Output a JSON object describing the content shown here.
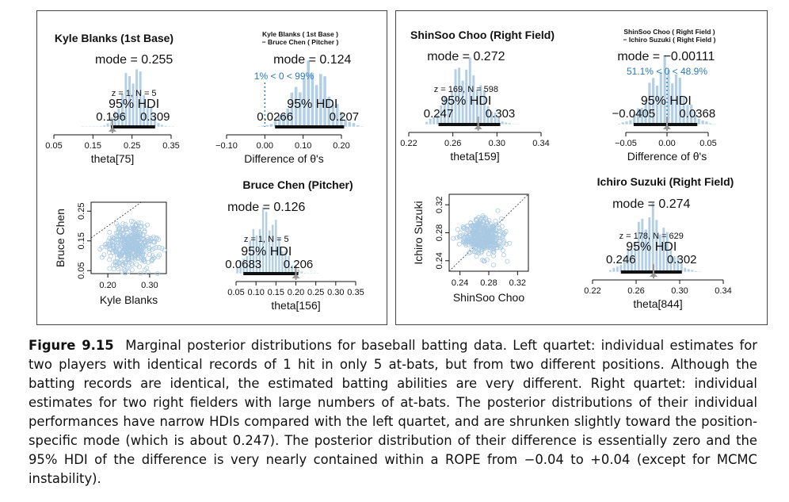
{
  "figure": {
    "label": "Figure 9.15",
    "caption": "Marginal posterior distributions for baseball batting data. Left quartet: individual estimates for two players with identical records of 1 hit in only 5 at-bats, but from two different positions. Although the batting records are identical, the estimated batting abilities are very different. Right quartet: individual estimates for two right fielders with large numbers of at-bats. The posterior distributions of their individual performances have narrow HDIs compared with the left quartet, and are shrunken slightly toward the position-specific mode (which is about 0.247). The posterior distribution of their difference is essentially zero and the 95% HDI of the difference is very nearly contained within a ROPE from −0.04 to +0.04 (except for MCMC instability)."
  },
  "colors": {
    "bar": "#b3cfe6",
    "scatter": "#a9c9e2",
    "hdi": "#111111",
    "compare": "#2a78b8",
    "marker": "#999999"
  },
  "chart_data": [
    {
      "id": "kb",
      "type": "histogram",
      "title": "Kyle Blanks (1st Base)",
      "xlabel": "theta[75]",
      "ticks": [
        "0.05",
        "0.15",
        "0.25",
        "0.35"
      ],
      "tick_values": [
        0.05,
        0.15,
        0.25,
        0.35
      ],
      "xlim": [
        0.05,
        0.35
      ],
      "mode_label": "mode = 0.255",
      "mode": 0.255,
      "zn": "z = 1, N = 5",
      "hdi_label": "95% HDI",
      "hdi": [
        0.196,
        0.309
      ],
      "hdi_lo_label": "0.196",
      "hdi_hi_label": "0.309",
      "marker": 0.2,
      "range": [
        0.12,
        0.36
      ],
      "sd": 0.029
    },
    {
      "id": "kbbc",
      "type": "histogram",
      "title": "Kyle Blanks  ( 1st Base )\n− Bruce Chen  ( Pitcher )",
      "xlabel": "Difference of θ's",
      "ticks": [
        "−0.10",
        "0.00",
        "0.10",
        "0.20"
      ],
      "tick_values": [
        -0.1,
        0,
        0.1,
        0.2
      ],
      "xlim": [
        -0.1,
        0.2
      ],
      "mode_label": "mode = 0.124",
      "mode": 0.124,
      "compare": "1% < 0 < 99%",
      "compare_value": 0,
      "hdi_label": "95% HDI",
      "hdi": [
        0.0266,
        0.207
      ],
      "hdi_lo_label": "0.0266",
      "hdi_hi_label": "0.207",
      "range": [
        -0.02,
        0.26
      ],
      "sd": 0.046
    },
    {
      "id": "kbbc_scatter",
      "type": "scatter",
      "xlabel": "Kyle Blanks",
      "ylabel": "Bruce Chen",
      "xticks": [
        "0.20",
        "0.30"
      ],
      "xtick_values": [
        0.2,
        0.3
      ],
      "yticks": [
        "0.05",
        "0.15",
        "0.25"
      ],
      "ytick_values": [
        0.05,
        0.15,
        0.25
      ],
      "xlim": [
        0.16,
        0.34
      ],
      "ylim": [
        0.04,
        0.28
      ],
      "center": [
        0.255,
        0.13
      ],
      "spread": [
        0.028,
        0.035
      ]
    },
    {
      "id": "bc",
      "type": "histogram",
      "title": "Bruce Chen (Pitcher)",
      "xlabel": "theta[156]",
      "ticks": [
        "0.05",
        "0.10",
        "0.15",
        "0.20",
        "0.25",
        "0.30",
        "0.35"
      ],
      "tick_values": [
        0.05,
        0.1,
        0.15,
        0.2,
        0.25,
        0.3,
        0.35
      ],
      "xlim": [
        0.05,
        0.35
      ],
      "mode_label": "mode = 0.126",
      "mode": 0.126,
      "zn": "z = 1, N = 5",
      "hdi_label": "95% HDI",
      "hdi": [
        0.0683,
        0.206
      ],
      "hdi_lo_label": "0.0683",
      "hdi_hi_label": "0.206",
      "marker": 0.2,
      "range": [
        0.05,
        0.26
      ],
      "sd": 0.035
    },
    {
      "id": "sc",
      "type": "histogram",
      "title": "ShinSoo Choo (Right Field)",
      "xlabel": "theta[159]",
      "ticks": [
        "0.22",
        "0.26",
        "0.30",
        "0.34"
      ],
      "tick_values": [
        0.22,
        0.26,
        0.3,
        0.34
      ],
      "xlim": [
        0.22,
        0.34
      ],
      "mode_label": "mode = 0.272",
      "mode": 0.272,
      "zn": "z = 169, N = 598",
      "hdi_label": "95% HDI",
      "hdi": [
        0.247,
        0.303
      ],
      "hdi_lo_label": "0.247",
      "hdi_hi_label": "0.303",
      "marker": 0.283,
      "range": [
        0.235,
        0.32
      ],
      "sd": 0.0145
    },
    {
      "id": "scis",
      "type": "histogram",
      "title": "ShinSoo Choo  ( Right Field )\n− Ichiro Suzuki  ( Right Field )",
      "xlabel": "Difference of θ's",
      "ticks": [
        "−0.05",
        "0.00",
        "0.05"
      ],
      "tick_values": [
        -0.05,
        0,
        0.05
      ],
      "xlim": [
        -0.05,
        0.05
      ],
      "mode_label": "mode = −0.00111",
      "mode": -0.00111,
      "compare": "51.1% < 0 < 48.9%",
      "compare_value": 0,
      "hdi_label": "95% HDI",
      "hdi": [
        -0.0405,
        0.0368
      ],
      "hdi_lo_label": "−0.0405",
      "hdi_hi_label": "0.0368",
      "marker": 0,
      "range": [
        -0.06,
        0.06
      ],
      "sd": 0.02
    },
    {
      "id": "scis_scatter",
      "type": "scatter",
      "xlabel": "ShinSoo Choo",
      "ylabel": "Ichiro Suzuki",
      "xticks": [
        "0.24",
        "0.28",
        "0.32"
      ],
      "xtick_values": [
        0.24,
        0.28,
        0.32
      ],
      "yticks": [
        "0.24",
        "0.28",
        "0.32"
      ],
      "ytick_values": [
        0.24,
        0.28,
        0.32
      ],
      "xlim": [
        0.225,
        0.335
      ],
      "ylim": [
        0.225,
        0.335
      ],
      "center": [
        0.272,
        0.274
      ],
      "spread": [
        0.014,
        0.013
      ]
    },
    {
      "id": "is",
      "type": "histogram",
      "title": "Ichiro Suzuki (Right Field)",
      "xlabel": "theta[844]",
      "ticks": [
        "0.22",
        "0.26",
        "0.30",
        "0.34"
      ],
      "tick_values": [
        0.22,
        0.26,
        0.3,
        0.34
      ],
      "xlim": [
        0.22,
        0.34
      ],
      "mode_label": "mode = 0.274",
      "mode": 0.274,
      "zn": "z = 178, N = 629",
      "hdi_label": "95% HDI",
      "hdi": [
        0.246,
        0.302
      ],
      "hdi_lo_label": "0.246",
      "hdi_hi_label": "0.302",
      "marker": 0.276,
      "range": [
        0.235,
        0.32
      ],
      "sd": 0.0145
    }
  ]
}
